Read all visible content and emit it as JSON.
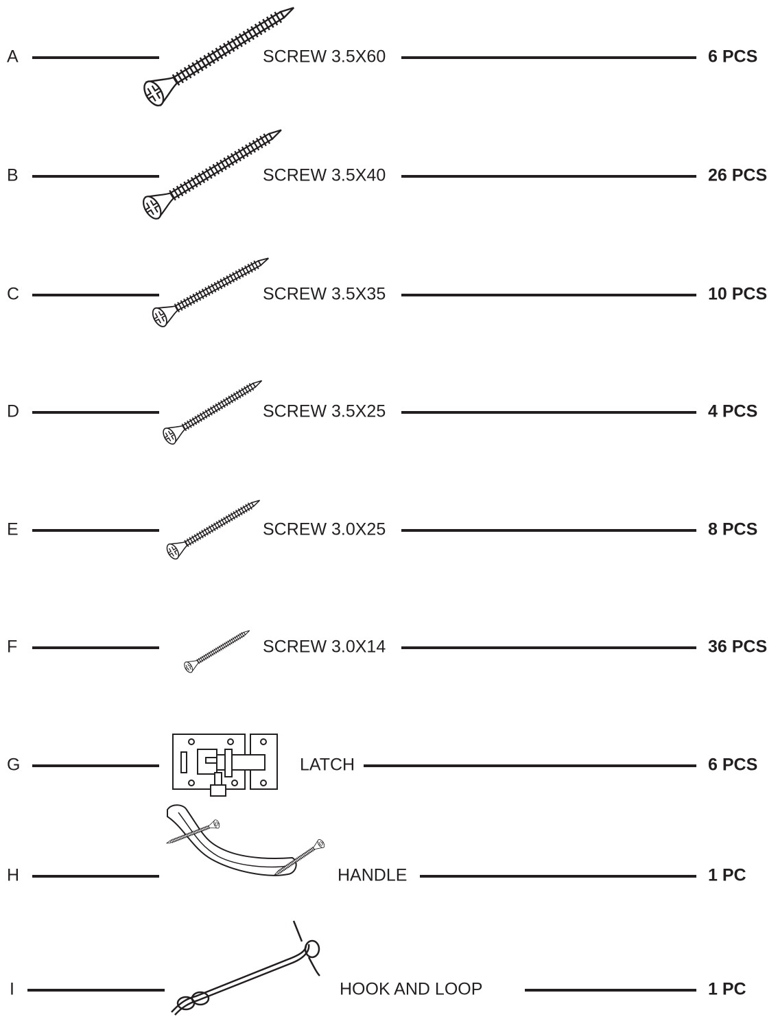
{
  "items": [
    {
      "letter": "A",
      "name": "SCREW 3.5X60",
      "quantity": "6 PCS"
    },
    {
      "letter": "B",
      "name": "SCREW 3.5X40",
      "quantity": "26 PCS"
    },
    {
      "letter": "C",
      "name": "SCREW 3.5X35",
      "quantity": "10 PCS"
    },
    {
      "letter": "D",
      "name": "SCREW 3.5X25",
      "quantity": "4 PCS"
    },
    {
      "letter": "E",
      "name": "SCREW 3.0X25",
      "quantity": "8 PCS"
    },
    {
      "letter": "F",
      "name": "SCREW 3.0X14",
      "quantity": "36 PCS"
    },
    {
      "letter": "G",
      "name": "LATCH",
      "quantity": "6 PCS"
    },
    {
      "letter": "H",
      "name": "HANDLE",
      "quantity": "1 PC"
    },
    {
      "letter": "I",
      "name": "HOOK AND LOOP",
      "quantity": "1 PC"
    }
  ]
}
